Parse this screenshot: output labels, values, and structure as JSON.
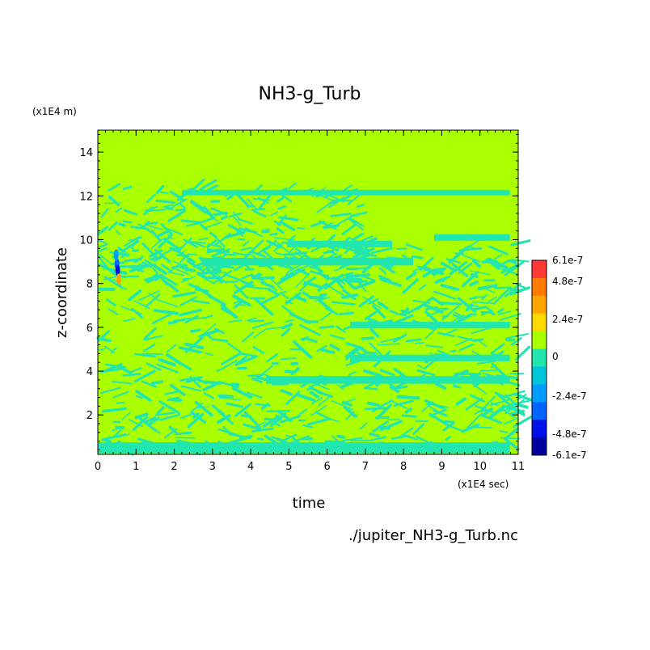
{
  "chart_data": {
    "type": "heatmap",
    "title": "NH3-g_Turb",
    "xlabel": "time",
    "ylabel": "z-coordinate",
    "x_unit": "(x1E4 sec)",
    "y_unit": "(x1E4 m)",
    "source_file": "./jupiter_NH3-g_Turb.nc",
    "xlim": [
      0,
      11
    ],
    "ylim": [
      0.2,
      15
    ],
    "x_ticks": [
      "0",
      "1",
      "2",
      "3",
      "4",
      "5",
      "6",
      "7",
      "8",
      "9",
      "10",
      "11"
    ],
    "y_ticks": [
      "2",
      "4",
      "6",
      "8",
      "10",
      "12",
      "14"
    ],
    "colorbar": {
      "labels": [
        "6.1e-7",
        "4.8e-7",
        "2.4e-7",
        "0",
        "-2.4e-7",
        "-4.8e-7",
        "-6.1e-7"
      ],
      "levels": [
        {
          "upper": 6.1e-07,
          "color": "#ff3838"
        },
        {
          "upper": 4.8e-07,
          "color": "#ff7a00"
        },
        {
          "upper": 3.6e-07,
          "color": "#ffa500"
        },
        {
          "upper": 2.4e-07,
          "color": "#ffd800"
        },
        {
          "upper": 1.2e-07,
          "color": "#aaff00"
        },
        {
          "upper": 0,
          "color": "#22e6b0"
        },
        {
          "upper": -1.2e-07,
          "color": "#00c6dc"
        },
        {
          "upper": -2.4e-07,
          "color": "#009cff"
        },
        {
          "upper": -3.6e-07,
          "color": "#0064ff"
        },
        {
          "upper": -4.8e-07,
          "color": "#0010e6"
        },
        {
          "upper": -6.1e-07,
          "color": "#0000a0"
        }
      ]
    },
    "background_color": "#aaff00",
    "negative_band_color": "#22e6b0",
    "contour_line_color": "#00c6dc"
  }
}
